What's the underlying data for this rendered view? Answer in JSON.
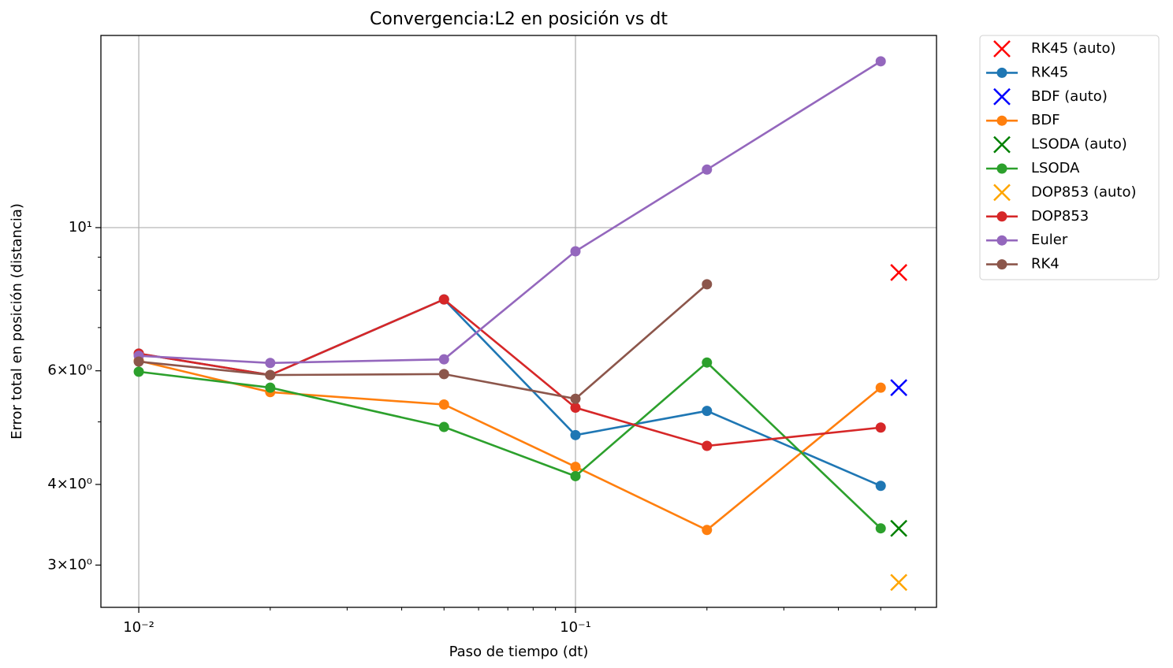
{
  "chart_data": {
    "type": "line",
    "title": "Convergencia:L2 en posición vs dt",
    "xlabel": "Paso de tiempo (dt)",
    "ylabel": "Error total en posición (distancia)",
    "xscale": "log",
    "yscale": "log",
    "xlim": [
      0.00819,
      0.671
    ],
    "ylim": [
      2.58,
      19.85
    ],
    "xticks": [
      {
        "value": 0.01,
        "label": "10⁻²"
      },
      {
        "value": 0.1,
        "label": "10⁻¹"
      }
    ],
    "xticks_minor": [
      0.02,
      0.03,
      0.04,
      0.05,
      0.06,
      0.07,
      0.08,
      0.09,
      0.2,
      0.3,
      0.4,
      0.5,
      0.6
    ],
    "yticks": [
      {
        "value": 3,
        "label": "3×10⁰"
      },
      {
        "value": 4,
        "label": "4×10⁰"
      },
      {
        "value": 6,
        "label": "6×10⁰"
      },
      {
        "value": 10,
        "label": "10¹"
      }
    ],
    "yticks_minor": [
      5,
      7,
      8,
      9
    ],
    "grid": true,
    "legend": "outside-right",
    "series": [
      {
        "name": "RK45 (auto)",
        "color": "#ff0000",
        "marker": "x",
        "x": [
          0.55
        ],
        "values": [
          8.52
        ]
      },
      {
        "name": "RK45",
        "color": "#1f77b4",
        "marker": "o",
        "x": [
          0.01,
          0.02,
          0.05,
          0.1,
          0.2,
          0.5
        ],
        "values": [
          6.38,
          5.91,
          7.74,
          4.77,
          5.2,
          3.98
        ]
      },
      {
        "name": "BDF (auto)",
        "color": "#0000ff",
        "marker": "x",
        "x": [
          0.55
        ],
        "values": [
          5.65
        ]
      },
      {
        "name": "BDF",
        "color": "#ff7f0e",
        "marker": "o",
        "x": [
          0.01,
          0.02,
          0.05,
          0.1,
          0.2,
          0.5
        ],
        "values": [
          6.22,
          5.56,
          5.32,
          4.26,
          3.4,
          5.65
        ]
      },
      {
        "name": "LSODA (auto)",
        "color": "#008000",
        "marker": "x",
        "x": [
          0.55
        ],
        "values": [
          3.42
        ]
      },
      {
        "name": "LSODA",
        "color": "#2ca02c",
        "marker": "o",
        "x": [
          0.01,
          0.02,
          0.05,
          0.1,
          0.2,
          0.5
        ],
        "values": [
          5.98,
          5.65,
          4.91,
          4.12,
          6.18,
          3.42
        ]
      },
      {
        "name": "DOP853 (auto)",
        "color": "#ffa500",
        "marker": "x",
        "x": [
          0.55
        ],
        "values": [
          2.82
        ]
      },
      {
        "name": "DOP853",
        "color": "#d62728",
        "marker": "o",
        "x": [
          0.01,
          0.02,
          0.05,
          0.1,
          0.2,
          0.5
        ],
        "values": [
          6.38,
          5.91,
          7.74,
          5.26,
          4.59,
          4.9
        ]
      },
      {
        "name": "Euler",
        "color": "#9467bd",
        "marker": "o",
        "x": [
          0.01,
          0.02,
          0.05,
          0.1,
          0.2,
          0.5
        ],
        "values": [
          6.33,
          6.17,
          6.25,
          9.19,
          12.3,
          18.1
        ]
      },
      {
        "name": "RK4",
        "color": "#8c564b",
        "marker": "o",
        "x": [
          0.01,
          0.02,
          0.05,
          0.1,
          0.2,
          0.5
        ],
        "values": [
          6.2,
          5.91,
          5.93,
          5.43,
          8.17,
          null
        ]
      }
    ]
  }
}
